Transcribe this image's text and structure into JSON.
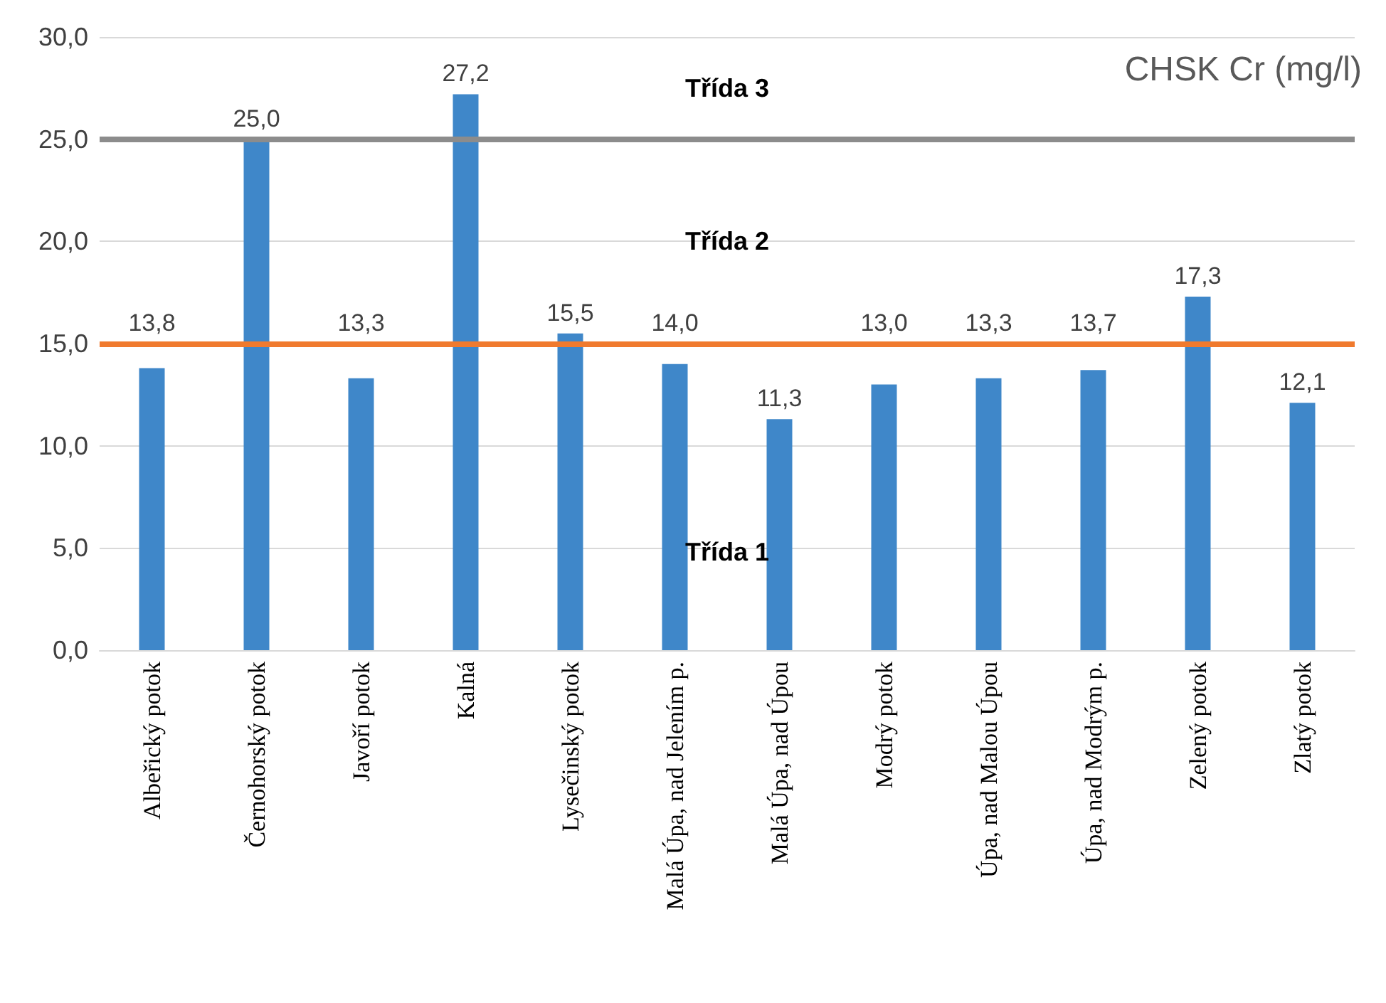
{
  "chart_data": {
    "type": "bar",
    "title": "CHSK Cr (mg/l)",
    "categories": [
      "Albeřický potok",
      "Černohorský potok",
      "Javoří potok",
      "Kalná",
      "Lysečinský potok",
      "Malá Úpa, nad Jelením p.",
      "Malá Úpa, nad Úpou",
      "Modrý potok",
      "Úpa, nad Malou Úpou",
      "Úpa, nad Modrým p.",
      "Zelený potok",
      "Zlatý potok"
    ],
    "values": [
      13.8,
      25.0,
      13.3,
      27.2,
      15.5,
      14.0,
      11.3,
      13.0,
      13.3,
      13.7,
      17.3,
      12.1
    ],
    "value_labels": [
      "13,8",
      "25,0",
      "13,3",
      "27,2",
      "15,5",
      "14,0",
      "11,3",
      "13,0",
      "13,3",
      "13,7",
      "17,3",
      "12,1"
    ],
    "color": "#3f87c9",
    "ylim": [
      0,
      30
    ],
    "yticks": [
      {
        "value": 0,
        "label": "0,0"
      },
      {
        "value": 5,
        "label": "5,0"
      },
      {
        "value": 10,
        "label": "10,0"
      },
      {
        "value": 15,
        "label": "15,0"
      },
      {
        "value": 20,
        "label": "20,0"
      },
      {
        "value": 25,
        "label": "25,0"
      },
      {
        "value": 30,
        "label": "30,0"
      }
    ],
    "grid": "y",
    "ref_lines": [
      {
        "axis": "y",
        "value": 25,
        "color": "#8c8c8c"
      },
      {
        "axis": "y",
        "value": 15,
        "color": "#f07a2e"
      }
    ],
    "annotations": [
      "Třída 3",
      "Třída 2",
      "Třída 1"
    ]
  }
}
